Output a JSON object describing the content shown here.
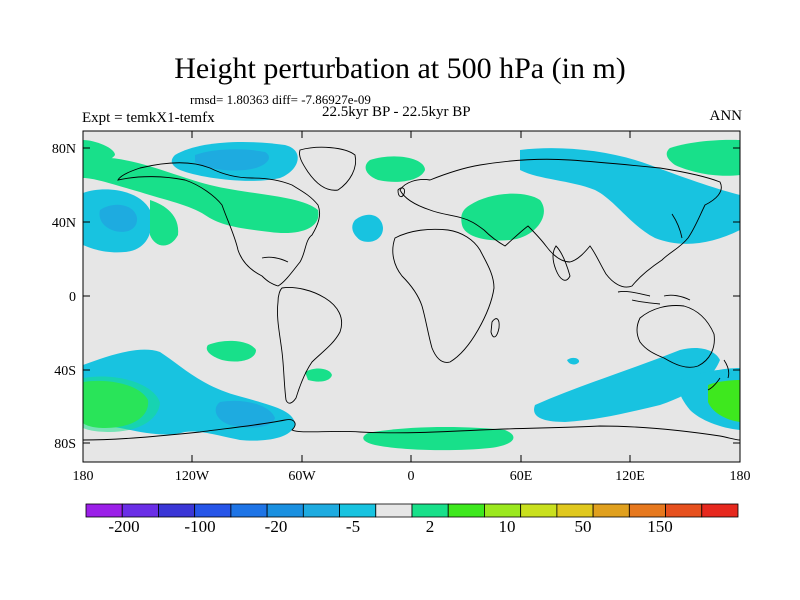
{
  "title": "Height perturbation at 500 hPa (in m)",
  "stats": "rmsd= 1.80363 diff= -7.86927e-09",
  "experiment": "Expt = temkX1-temfx",
  "period": "22.5kyr BP - 22.5kyr BP",
  "season": "ANN",
  "map": {
    "projection": "cylindrical-equidistant",
    "lon_range": [
      -180,
      180
    ],
    "lat_range": [
      -90,
      90
    ],
    "lat_ticks": [
      "80N",
      "40N",
      "0",
      "40S",
      "80S"
    ],
    "lon_ticks": [
      "180",
      "120W",
      "60W",
      "0",
      "60E",
      "120E",
      "180"
    ],
    "background_color": "#e6e6e6",
    "coastline_color": "#000000"
  },
  "colorbar": {
    "labels": [
      "-200",
      "-100",
      "-20",
      "-5",
      "2",
      "10",
      "50",
      "150"
    ],
    "colors": [
      "#9b1fe8",
      "#6a2ee6",
      "#3a36d6",
      "#2655e8",
      "#1e74e6",
      "#1a90e0",
      "#1eabe0",
      "#18c3e0",
      "#e6e6e6",
      "#18e08a",
      "#3ee81e",
      "#9be81e",
      "#c9e01e",
      "#e0c81e",
      "#e0a01e",
      "#e6781e",
      "#e6501e",
      "#e6281e"
    ]
  }
}
